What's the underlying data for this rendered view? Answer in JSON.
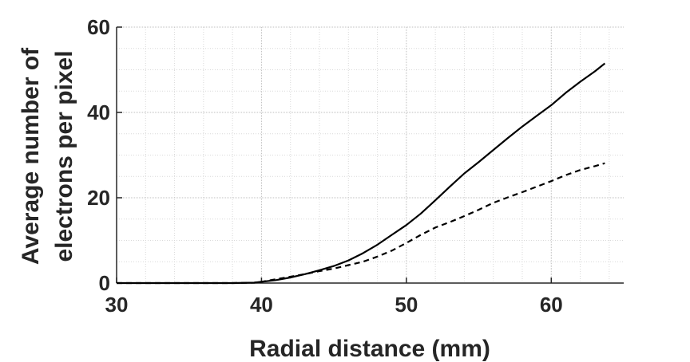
{
  "chart_data": {
    "type": "line",
    "title": "",
    "xlabel": "Radial distance (mm)",
    "ylabel_lines": [
      "Average number of",
      "electrons per pixel"
    ],
    "xlim": [
      30,
      65
    ],
    "ylim": [
      0,
      60
    ],
    "x_ticks": [
      30,
      40,
      50,
      60
    ],
    "y_ticks": [
      0,
      20,
      40,
      60
    ],
    "x_minor_step": 2,
    "y_minor_step": 5,
    "grid": true,
    "grid_style": "dotted",
    "series": [
      {
        "style": "solid",
        "color": "#000000",
        "x": [
          30,
          35,
          38,
          39.5,
          40,
          41,
          42,
          43,
          44,
          45,
          46,
          47,
          48,
          49,
          50,
          51,
          52,
          53,
          54,
          55,
          56,
          57,
          58,
          59,
          60,
          61,
          62,
          63,
          63.7
        ],
        "y": [
          0,
          0,
          0,
          0.1,
          0.3,
          0.7,
          1.3,
          2.1,
          3.0,
          4.0,
          5.3,
          7.0,
          9.0,
          11.3,
          13.6,
          16.3,
          19.4,
          22.6,
          25.7,
          28.4,
          31.2,
          34.0,
          36.7,
          39.2,
          41.7,
          44.6,
          47.2,
          49.6,
          51.5
        ]
      },
      {
        "style": "dashed",
        "color": "#000000",
        "x": [
          30,
          35,
          38,
          39.5,
          40,
          41,
          42,
          43,
          44,
          45,
          46,
          47,
          48,
          49,
          50,
          51,
          52,
          53,
          54,
          55,
          56,
          57,
          58,
          59,
          60,
          61,
          62,
          63,
          63.7
        ],
        "y": [
          0,
          0,
          0,
          0.1,
          0.3,
          0.9,
          1.5,
          2.1,
          2.8,
          3.4,
          4.2,
          5.0,
          6.2,
          7.6,
          9.4,
          11.3,
          13.0,
          14.3,
          15.7,
          17.2,
          18.8,
          20.1,
          21.3,
          22.6,
          23.9,
          25.3,
          26.5,
          27.4,
          28.1
        ]
      }
    ]
  }
}
